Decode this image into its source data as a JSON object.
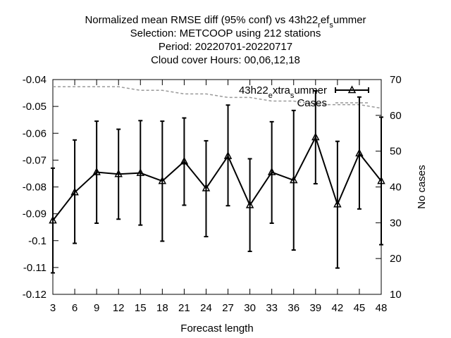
{
  "title_lines": [
    "Normalized mean RMSE diff (95% conf) vs 43h22_ref_summer",
    "Selection: METCOOP using   212 stations",
    "Period: 20220701-20220717",
    "Cloud cover   Hours: 00,06,12,18"
  ],
  "chart_data": {
    "type": "line",
    "xlabel": "Forecast length",
    "ylabel": "",
    "y2label": "No cases",
    "x": [
      3,
      6,
      9,
      12,
      15,
      18,
      21,
      24,
      27,
      30,
      33,
      36,
      39,
      42,
      45,
      48
    ],
    "ylim": [
      -0.12,
      -0.04
    ],
    "y2lim": [
      10,
      70
    ],
    "yticks": [
      "-0.04",
      "-0.05",
      "-0.06",
      "-0.07",
      "-0.08",
      "-0.09",
      "-0.1",
      "-0.11",
      "-0.12"
    ],
    "y2ticks": [
      "70",
      "60",
      "50",
      "40",
      "30",
      "20",
      "10"
    ],
    "xticks": [
      "3",
      "6",
      "9",
      "12",
      "15",
      "18",
      "21",
      "24",
      "27",
      "30",
      "33",
      "36",
      "39",
      "42",
      "45",
      "48"
    ],
    "legend_position": "top-right",
    "grid": false,
    "series": [
      {
        "name": "43h22_extra_summer",
        "axis": "left",
        "color": "#000000",
        "style": "line-errorbars-triangle",
        "values": [
          -0.0925,
          -0.082,
          -0.0745,
          -0.0752,
          -0.0748,
          -0.0778,
          -0.0705,
          -0.0805,
          -0.0685,
          -0.0868,
          -0.0745,
          -0.0775,
          -0.0615,
          -0.0865,
          -0.0675,
          -0.0778
        ],
        "lower": [
          -0.112,
          -0.101,
          -0.0935,
          -0.092,
          -0.0942,
          -0.1002,
          -0.0868,
          -0.0985,
          -0.087,
          -0.104,
          -0.0935,
          -0.1035,
          -0.0788,
          -0.1102,
          -0.0882,
          -0.1015
        ],
        "upper": [
          -0.073,
          -0.0625,
          -0.0555,
          -0.0585,
          -0.0553,
          -0.0555,
          -0.0543,
          -0.0628,
          -0.0495,
          -0.0695,
          -0.0557,
          -0.0515,
          -0.0442,
          -0.063,
          -0.0465,
          -0.054
        ]
      },
      {
        "name": "Cases",
        "axis": "right",
        "color": "#999999",
        "style": "dashed",
        "values": [
          68,
          68,
          68,
          68,
          67,
          67,
          66,
          66,
          65,
          65,
          64,
          64,
          63,
          63,
          63,
          62
        ]
      }
    ]
  }
}
